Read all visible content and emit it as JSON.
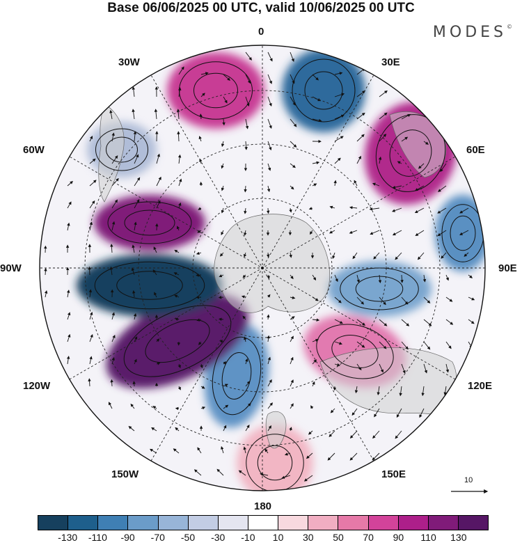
{
  "title": "Base 06/06/2025 00 UTC, valid 10/06/2025 00 UTC",
  "brand": "MODES",
  "brand_mark": "©",
  "meridian_labels": {
    "m0": "0",
    "m30e": "30E",
    "m60e": "60E",
    "m90e": "90E",
    "m120e": "120E",
    "m150e": "150E",
    "m180": "180",
    "m150w": "150W",
    "m120w": "120W",
    "m90w": "90W",
    "m60w": "60W",
    "m30w": "30W"
  },
  "reference_vector": {
    "label": "10"
  },
  "projection": "south-polar-stereographic",
  "colorbar": {
    "colors": [
      "#16405e",
      "#1e5f8c",
      "#3f7fb4",
      "#6b9cc9",
      "#98b5d8",
      "#c3cde4",
      "#e4e5f0",
      "#ffffff",
      "#f8d9df",
      "#f1aec2",
      "#e679a8",
      "#d3439a",
      "#ad1f8a",
      "#801b79",
      "#561665"
    ],
    "tick_labels": [
      "-130",
      "-110",
      "-90",
      "-70",
      "-50",
      "-30",
      "-10",
      "10",
      "30",
      "50",
      "70",
      "90",
      "110",
      "130"
    ]
  },
  "anomaly_centers": [
    {
      "sign": "positive",
      "strength": "strong",
      "region": "30W",
      "color": "#c83d95"
    },
    {
      "sign": "negative",
      "strength": "strong",
      "region": "20E",
      "color": "#2e6a9c"
    },
    {
      "sign": "positive",
      "strength": "strong",
      "region": "50E",
      "color": "#b12a8c"
    },
    {
      "sign": "negative",
      "strength": "moderate",
      "region": "90E",
      "color": "#5a90c2"
    },
    {
      "sign": "negative",
      "strength": "moderate",
      "region": "100E",
      "color": "#7aa6cf"
    },
    {
      "sign": "positive",
      "strength": "moderate",
      "region": "130E",
      "color": "#e27ab0"
    },
    {
      "sign": "positive",
      "strength": "weak",
      "region": "180",
      "color": "#f2b6c4"
    },
    {
      "sign": "negative",
      "strength": "moderate",
      "region": "150W",
      "color": "#5e93c5"
    },
    {
      "sign": "positive",
      "strength": "very strong",
      "region": "120W",
      "color": "#5a1a6b"
    },
    {
      "sign": "negative",
      "strength": "very strong",
      "region": "90W",
      "color": "#17415e"
    },
    {
      "sign": "positive",
      "strength": "strong",
      "region": "75W",
      "color": "#801b79"
    },
    {
      "sign": "negative",
      "strength": "weak",
      "region": "60W",
      "color": "#b0bdd8"
    }
  ]
}
